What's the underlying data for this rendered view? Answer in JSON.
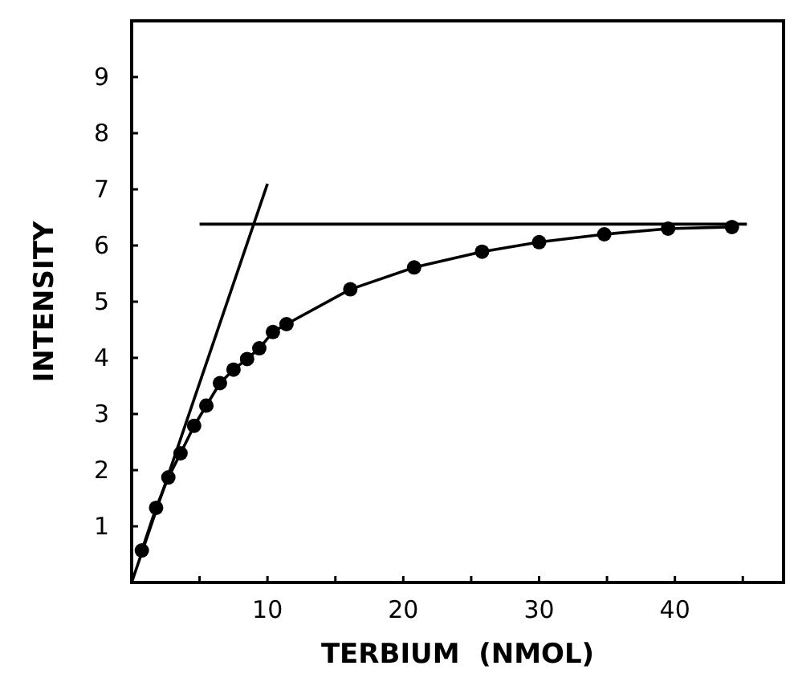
{
  "chart_data": {
    "type": "line",
    "xlabel": "TERBIUM  (NMOL)",
    "ylabel": "INTENSITY",
    "xlim": [
      0,
      48
    ],
    "ylim": [
      0,
      10
    ],
    "xticks": [
      {
        "value": 5,
        "label": null
      },
      10,
      {
        "value": 15,
        "label": null
      },
      20,
      {
        "value": 25,
        "label": null
      },
      30,
      {
        "value": 35,
        "label": null
      },
      40,
      {
        "value": 45,
        "label": null
      }
    ],
    "yticks": [
      1,
      2,
      3,
      4,
      5,
      6,
      7,
      8,
      9
    ],
    "series": [
      {
        "marker": "circle",
        "color": "#000000",
        "x": [
          0.75,
          1.8,
          2.7,
          3.6,
          4.6,
          5.5,
          6.5,
          7.5,
          8.5,
          9.4,
          10.4,
          11.4,
          16.1,
          20.8,
          25.8,
          30.0,
          34.8,
          39.5,
          44.2
        ],
        "values": [
          0.57,
          1.33,
          1.87,
          2.3,
          2.79,
          3.15,
          3.55,
          3.79,
          3.98,
          4.17,
          4.46,
          4.6,
          5.22,
          5.61,
          5.89,
          6.06,
          6.2,
          6.3,
          6.33
        ]
      },
      {
        "marker": "none",
        "color": "#000000",
        "x": [
          0,
          10
        ],
        "values": [
          0,
          7.1
        ]
      },
      {
        "marker": "none",
        "color": "#000000",
        "x": [
          5,
          45.3
        ],
        "values": [
          6.38,
          6.38
        ]
      }
    ]
  }
}
